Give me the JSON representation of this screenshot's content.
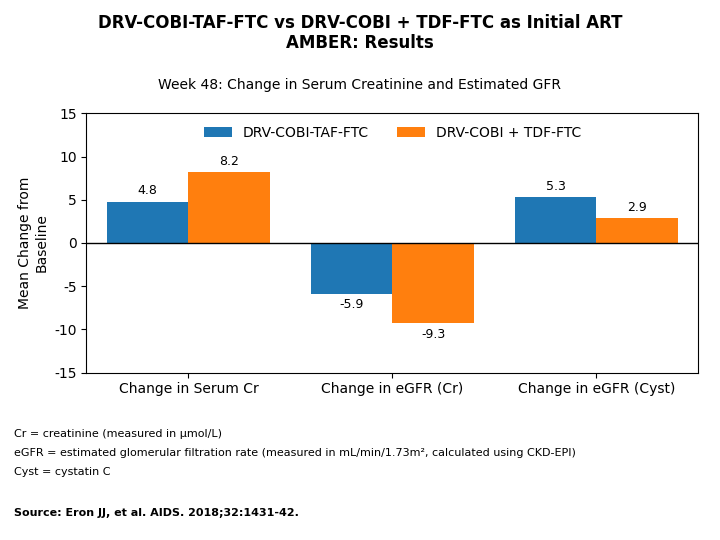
{
  "chart_data": {
    "type": "bar",
    "title": "DRV-COBI-TAF-FTC vs DRV-COBI + TDF-FTC as Initial ART\nAMBER: Results",
    "subtitle": "Week 48: Change in Serum Creatinine and Estimated GFR",
    "categories": [
      "Change in Serum Cr",
      "Change in eGFR (Cr)",
      "Change in eGFR (Cyst)"
    ],
    "series": [
      {
        "name": "DRV-COBI-TAF-FTC",
        "values": [
          4.8,
          -5.9,
          5.3
        ]
      },
      {
        "name": "DRV-COBI + TDF-FTC",
        "values": [
          8.2,
          -9.3,
          2.9
        ]
      }
    ],
    "ylabel": "Mean Change from\nBaseline",
    "ylim": [
      -15,
      15
    ],
    "yticks": [
      -15,
      -10,
      -5,
      0,
      5,
      10,
      15
    ],
    "grid": false,
    "legend": "upper center",
    "data_labels": true,
    "annotations": [
      "Cr = creatinine (measured in μmol/L)",
      "eGFR = estimated glomerular filtration rate (measured in mL/min/1.73m², calculated using CKD-EPI)",
      "Cyst = cystatin C",
      "Source: Eron JJ, et al. AIDS. 2018;32:1431-42."
    ]
  }
}
